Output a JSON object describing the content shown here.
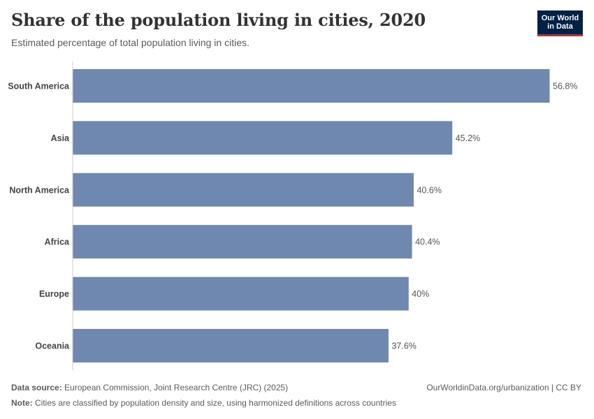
{
  "header": {
    "title": "Share of the population living in cities, 2020",
    "subtitle": "Estimated percentage of total population living in cities."
  },
  "logo": {
    "line1": "Our World",
    "line2": "in Data"
  },
  "footer": {
    "source_label": "Data source:",
    "source_text": " European Commission, Joint Research Centre (JRC) (2025)",
    "credit": "OurWorldinData.org/urbanization | CC BY",
    "note_label": "Note:",
    "note_text": " Cities are classified by population density and size, using harmonized definitions across countries"
  },
  "colors": {
    "bar": "#6e88b0",
    "axis": "#cccccc",
    "label": "#555555",
    "category": "#444444",
    "brand": "#002147",
    "brand_accent": "#ce261e"
  },
  "chart_data": {
    "type": "bar",
    "orientation": "horizontal",
    "categories": [
      "South America",
      "Asia",
      "North America",
      "Africa",
      "Europe",
      "Oceania"
    ],
    "values": [
      56.8,
      45.2,
      40.6,
      40.4,
      40,
      37.6
    ],
    "value_labels": [
      "56.8%",
      "45.2%",
      "40.6%",
      "40.4%",
      "40%",
      "37.6%"
    ],
    "unit": "%",
    "xlim": [
      0,
      56.8
    ],
    "grid": false,
    "legend": "none"
  }
}
